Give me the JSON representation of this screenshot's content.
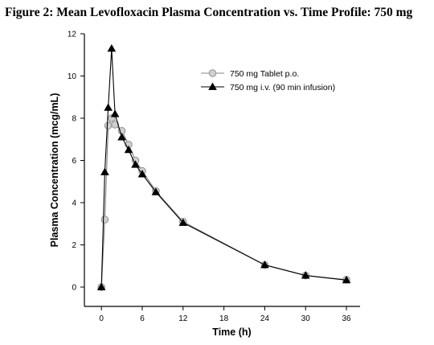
{
  "chart_data": {
    "type": "line",
    "title": "Figure 2: Mean Levofloxacin Plasma Concentration vs. Time Profile: 750 mg",
    "xlabel": "Time (h)",
    "ylabel": "Plasma Concentration (mcg/mL)",
    "xlim": [
      -2.5,
      38
    ],
    "ylim": [
      0,
      12
    ],
    "xticks": [
      0,
      6,
      12,
      18,
      24,
      30,
      36
    ],
    "yticks": [
      0,
      2,
      4,
      6,
      8,
      10,
      12
    ],
    "grid": false,
    "legend_position": "top-right",
    "series": [
      {
        "name": "750 mg Tablet p.o.",
        "marker": "circle",
        "color": "#888888",
        "marker_fill": "#cfcfcf",
        "x": [
          0,
          0.5,
          1,
          1.5,
          2,
          3,
          4,
          5,
          6,
          8,
          12,
          24,
          30,
          36
        ],
        "y": [
          0,
          3.2,
          7.65,
          8.0,
          7.7,
          7.4,
          6.75,
          6.0,
          5.5,
          4.55,
          3.1,
          1.05,
          0.55,
          0.35
        ]
      },
      {
        "name": "750 mg i.v. (90 min infusion)",
        "marker": "triangle",
        "color": "#000000",
        "marker_fill": "#000000",
        "x": [
          0,
          0.5,
          1,
          1.5,
          2,
          3,
          4,
          5,
          6,
          8,
          12,
          24,
          30,
          36
        ],
        "y": [
          0,
          5.45,
          8.5,
          11.3,
          8.2,
          7.1,
          6.5,
          5.8,
          5.35,
          4.5,
          3.05,
          1.05,
          0.55,
          0.33
        ]
      }
    ]
  }
}
